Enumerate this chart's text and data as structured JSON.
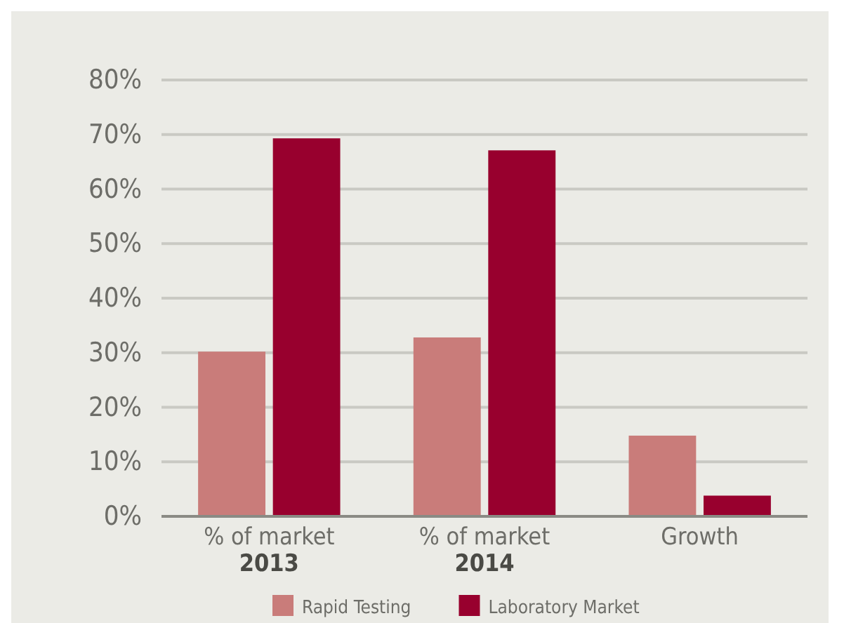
{
  "chart_data": {
    "type": "bar",
    "categories": [
      "% of market\n2013",
      "% of market\n2014",
      "Growth"
    ],
    "series": [
      {
        "name": "Rapid Testing",
        "color": "#c97c7a",
        "values": [
          30.2,
          32.8,
          14.8
        ]
      },
      {
        "name": "Laboratory Market",
        "color": "#98002e",
        "values": [
          69.3,
          67.1,
          3.8
        ]
      }
    ],
    "ylim": [
      0,
      80
    ],
    "yticks": [
      {
        "value": 0,
        "label": "0%"
      },
      {
        "value": 10,
        "label": "10%"
      },
      {
        "value": 20,
        "label": "20%"
      },
      {
        "value": 30,
        "label": "30%"
      },
      {
        "value": 40,
        "label": "40%"
      },
      {
        "value": 50,
        "label": "50%"
      },
      {
        "value": 60,
        "label": "60%"
      },
      {
        "value": 70,
        "label": "70%"
      },
      {
        "value": 80,
        "label": "80%"
      }
    ],
    "grid": "y",
    "legend": "bottom"
  }
}
